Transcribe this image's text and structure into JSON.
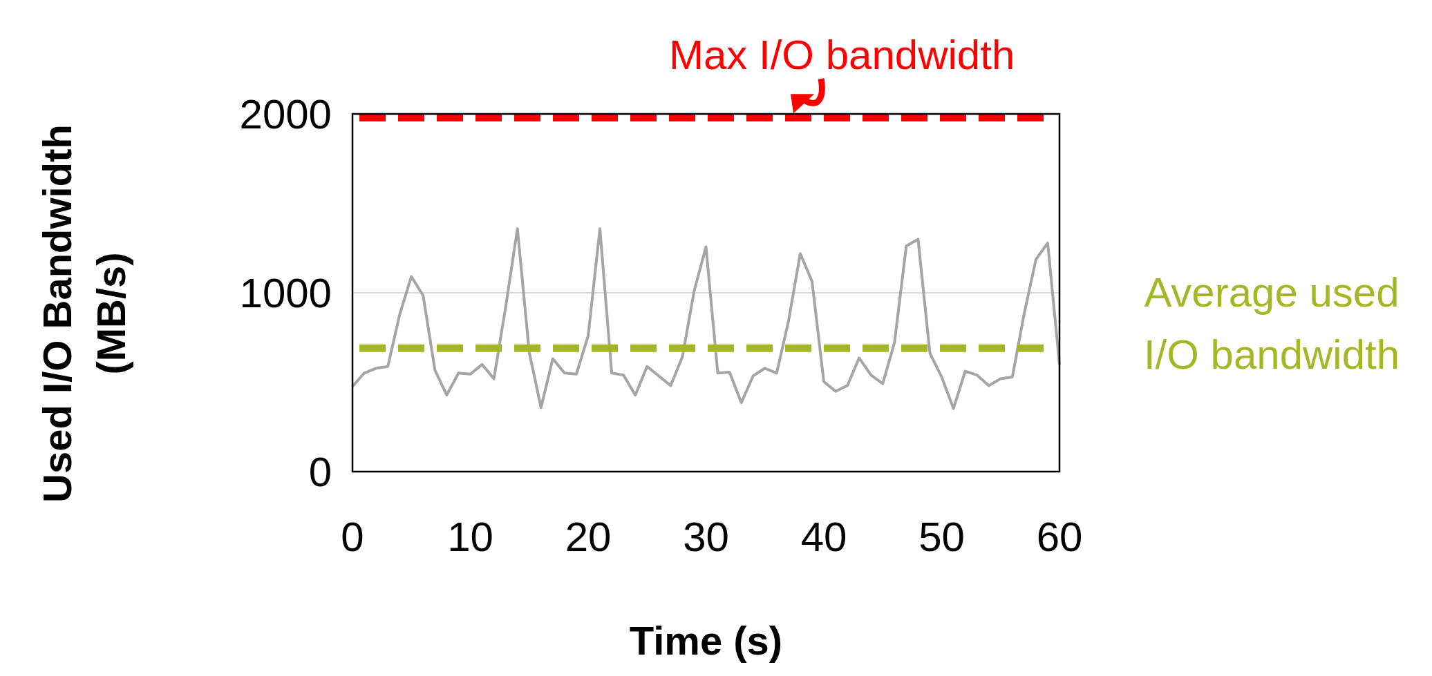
{
  "chart_data": {
    "type": "line",
    "xlabel": "Time (s)",
    "ylabel": "Used I/O Bandwidth (MB/s)",
    "x": [
      0,
      1,
      2,
      3,
      4,
      5,
      6,
      7,
      8,
      9,
      10,
      11,
      12,
      13,
      14,
      15,
      16,
      17,
      18,
      19,
      20,
      21,
      22,
      23,
      24,
      25,
      26,
      27,
      28,
      29,
      30,
      31,
      32,
      33,
      34,
      35,
      36,
      37,
      38,
      39,
      40,
      41,
      42,
      43,
      44,
      45,
      46,
      47,
      48,
      49,
      50,
      51,
      52,
      53,
      54,
      55,
      56,
      57,
      58,
      59,
      60
    ],
    "series": [
      {
        "color": "#a5a5a5",
        "values": [
          476,
          551,
          578,
          588,
          877,
          1091,
          984,
          567,
          428,
          551,
          545,
          599,
          519,
          920,
          1358,
          668,
          358,
          631,
          551,
          545,
          759,
          1358,
          551,
          540,
          428,
          588,
          535,
          481,
          642,
          1011,
          1257,
          551,
          556,
          385,
          535,
          578,
          551,
          840,
          1219,
          1064,
          503,
          449,
          481,
          636,
          540,
          492,
          722,
          1262,
          1299,
          663,
          529,
          353,
          561,
          540,
          481,
          519,
          529,
          882,
          1187,
          1278,
          599
        ]
      }
    ],
    "xlim": [
      0,
      60
    ],
    "xticks": [
      0,
      10,
      20,
      30,
      40,
      50,
      60
    ],
    "ylim": [
      0,
      2000
    ],
    "yticks": [
      0,
      1000,
      2000
    ],
    "grid": "y",
    "ref_lines": [
      {
        "axis": "y",
        "value": 1980,
        "label": "Max I/O bandwidth",
        "color": "#ff0000",
        "line_style": "dashed"
      },
      {
        "axis": "y",
        "value": 690,
        "label": "Average used I/O bandwidth",
        "color": "#a4b825",
        "line_style": "dashed"
      }
    ]
  }
}
